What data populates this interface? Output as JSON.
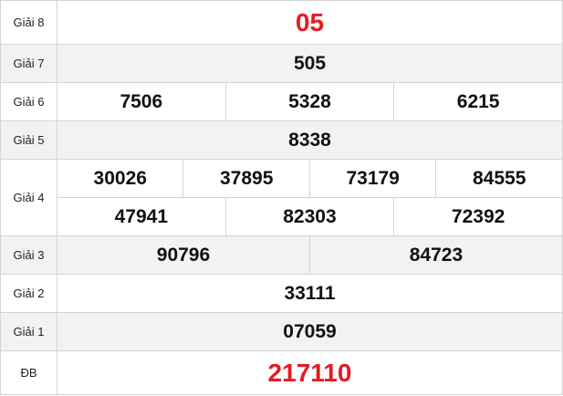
{
  "accent_color": "#e31b23",
  "prizes": [
    {
      "label": "Giải 8",
      "numbers": [
        "05"
      ]
    },
    {
      "label": "Giải 7",
      "numbers": [
        "505"
      ]
    },
    {
      "label": "Giải 6",
      "numbers": [
        "7506",
        "5328",
        "6215"
      ]
    },
    {
      "label": "Giải 5",
      "numbers": [
        "8338"
      ]
    },
    {
      "label": "Giải 4",
      "numbers": [
        "30026",
        "37895",
        "73179",
        "84555",
        "47941",
        "82303",
        "72392"
      ]
    },
    {
      "label": "Giải 3",
      "numbers": [
        "90796",
        "84723"
      ]
    },
    {
      "label": "Giải 2",
      "numbers": [
        "33111"
      ]
    },
    {
      "label": "Giải 1",
      "numbers": [
        "07059"
      ]
    },
    {
      "label": "ĐB",
      "numbers": [
        "217110"
      ]
    }
  ]
}
